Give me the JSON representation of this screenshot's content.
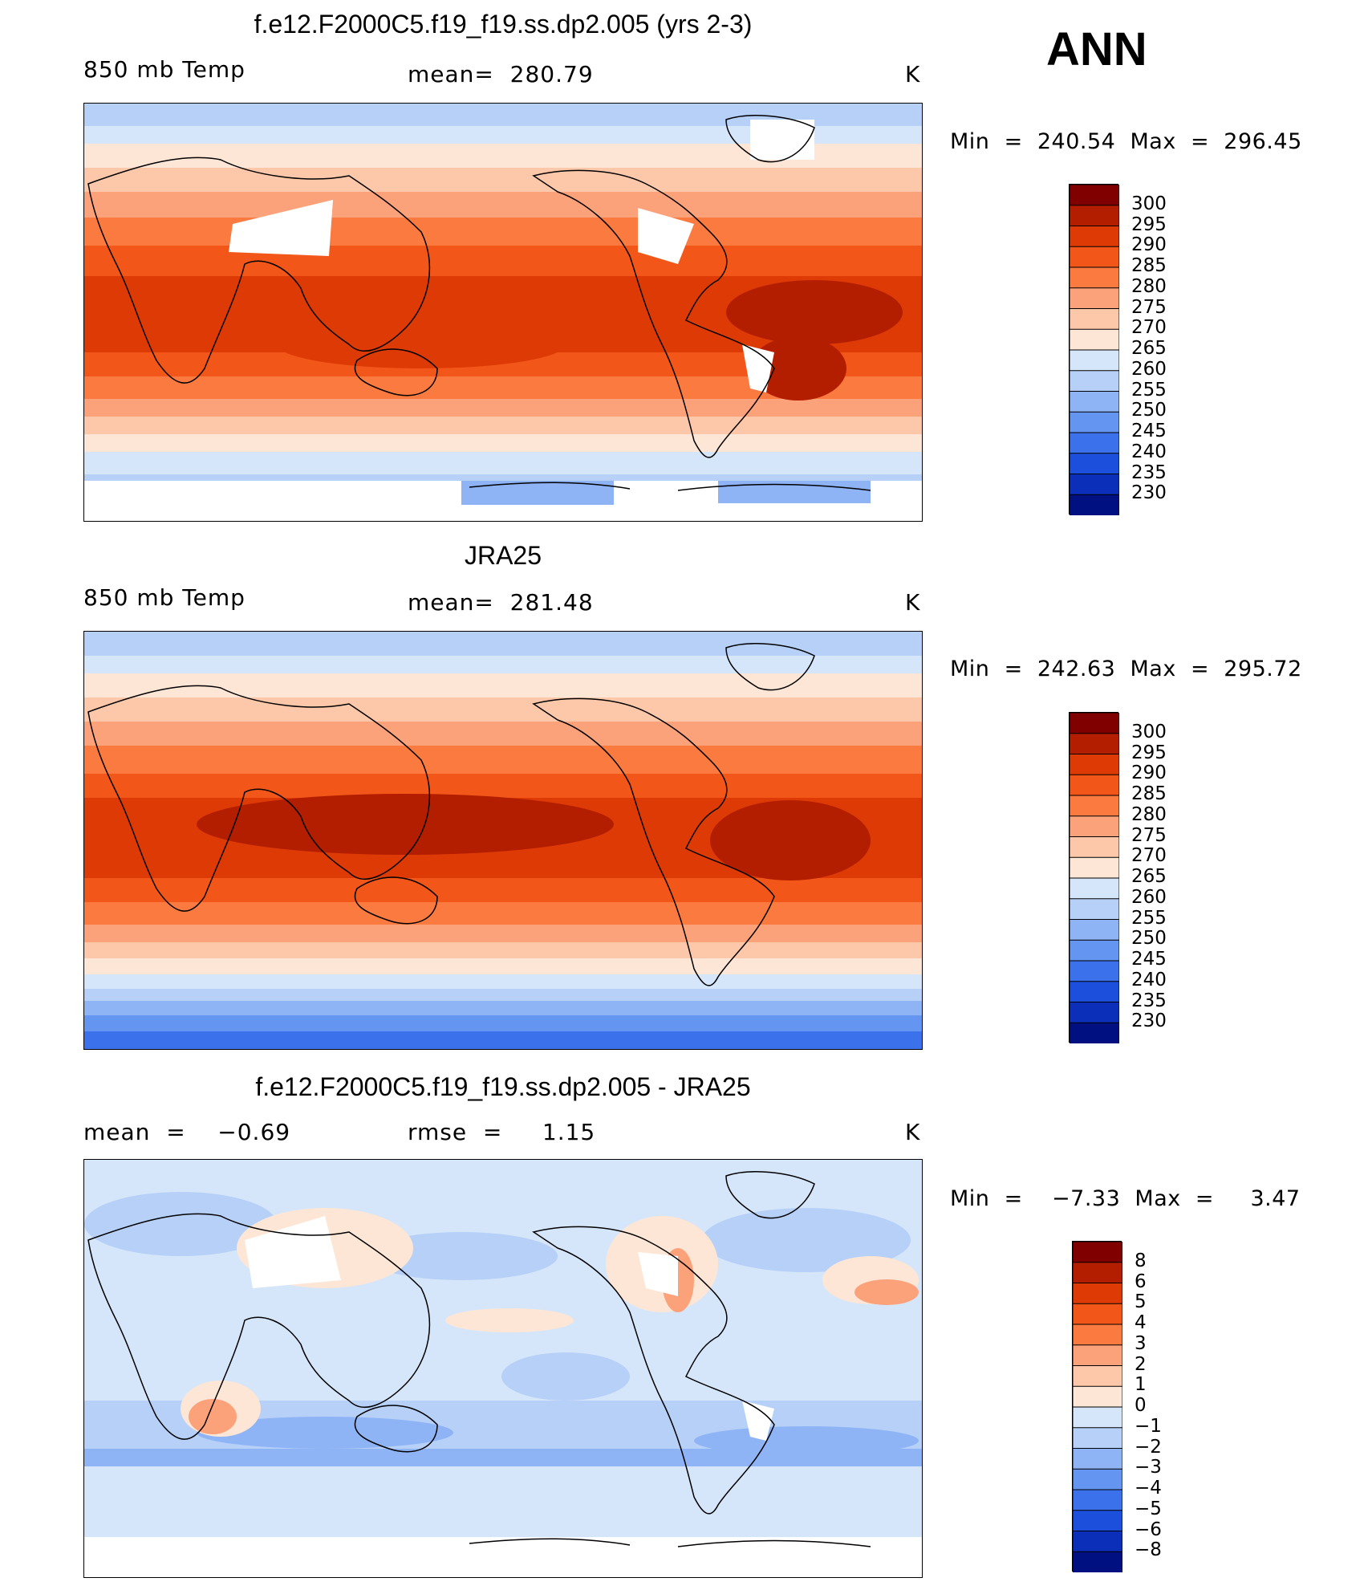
{
  "season": "ANN",
  "units": "K",
  "panels": [
    {
      "title": "f.e12.F2000C5.f19_f19.ss.dp2.005 (yrs 2-3)",
      "left_label": "850 mb Temp",
      "stat_text": "mean=  280.79",
      "units": "K",
      "minmax": "Min  =  240.54  Max  =  296.45"
    },
    {
      "title": "JRA25",
      "left_label": "850 mb Temp",
      "stat_text": "mean=  281.48",
      "units": "K",
      "minmax": "Min  =  242.63  Max  =  295.72"
    },
    {
      "title": "f.e12.F2000C5.f19_f19.ss.dp2.005 - JRA25",
      "left_label": "mean  =    −0.69",
      "stat_text": "rmse  =     1.15",
      "units": "K",
      "minmax": "Min  =    −7.33  Max  =     3.47"
    }
  ],
  "chart_data": [
    {
      "type": "heatmap",
      "title": "f.e12.F2000C5.f19_f19.ss.dp2.005 (yrs 2-3)",
      "variable": "850 mb Temp",
      "units": "K",
      "mean": 280.79,
      "min": 240.54,
      "max": 296.45,
      "colorbar_levels": [
        "300",
        "295",
        "290",
        "285",
        "280",
        "275",
        "270",
        "265",
        "260",
        "255",
        "250",
        "245",
        "240",
        "235",
        "230"
      ],
      "zonal_profile": [
        {
          "lat": 90,
          "value": 256
        },
        {
          "lat": 75,
          "value": 260
        },
        {
          "lat": 60,
          "value": 267
        },
        {
          "lat": 45,
          "value": 275
        },
        {
          "lat": 30,
          "value": 284
        },
        {
          "lat": 15,
          "value": 289
        },
        {
          "lat": 0,
          "value": 291
        },
        {
          "lat": -15,
          "value": 289
        },
        {
          "lat": -30,
          "value": 284
        },
        {
          "lat": -45,
          "value": 275
        },
        {
          "lat": -60,
          "value": 266
        },
        {
          "lat": -75,
          "value": 252
        }
      ]
    },
    {
      "type": "heatmap",
      "title": "JRA25",
      "variable": "850 mb Temp",
      "units": "K",
      "mean": 281.48,
      "min": 242.63,
      "max": 295.72,
      "colorbar_levels": [
        "300",
        "295",
        "290",
        "285",
        "280",
        "275",
        "270",
        "265",
        "260",
        "255",
        "250",
        "245",
        "240",
        "235",
        "230"
      ],
      "zonal_profile": [
        {
          "lat": 90,
          "value": 258
        },
        {
          "lat": 75,
          "value": 261
        },
        {
          "lat": 60,
          "value": 268
        },
        {
          "lat": 45,
          "value": 276
        },
        {
          "lat": 30,
          "value": 285
        },
        {
          "lat": 15,
          "value": 290
        },
        {
          "lat": 0,
          "value": 292
        },
        {
          "lat": -15,
          "value": 290
        },
        {
          "lat": -30,
          "value": 285
        },
        {
          "lat": -45,
          "value": 276
        },
        {
          "lat": -60,
          "value": 265
        },
        {
          "lat": -75,
          "value": 246
        },
        {
          "lat": -90,
          "value": 243
        }
      ]
    },
    {
      "type": "heatmap",
      "title": "f.e12.F2000C5.f19_f19.ss.dp2.005 - JRA25",
      "units": "K",
      "mean": -0.69,
      "rmse": 1.15,
      "min": -7.33,
      "max": 3.47,
      "colorbar_levels": [
        "8",
        "6",
        "5",
        "4",
        "3",
        "2",
        "1",
        "0",
        "−1",
        "−2",
        "−3",
        "−4",
        "−5",
        "−6",
        "−8"
      ]
    }
  ],
  "colors": {
    "abs_scale": [
      "#800000",
      "#b41e00",
      "#de3a06",
      "#f25618",
      "#fa7a40",
      "#fca27a",
      "#fdc8aa",
      "#fde6d5",
      "#d6e6fa",
      "#b6d0f8",
      "#8fb4f6",
      "#6495f0",
      "#3b72eb",
      "#1c4fdc",
      "#0b2fb9",
      "#001080"
    ],
    "land_outline": "#000000",
    "missing": "#ffffff"
  }
}
